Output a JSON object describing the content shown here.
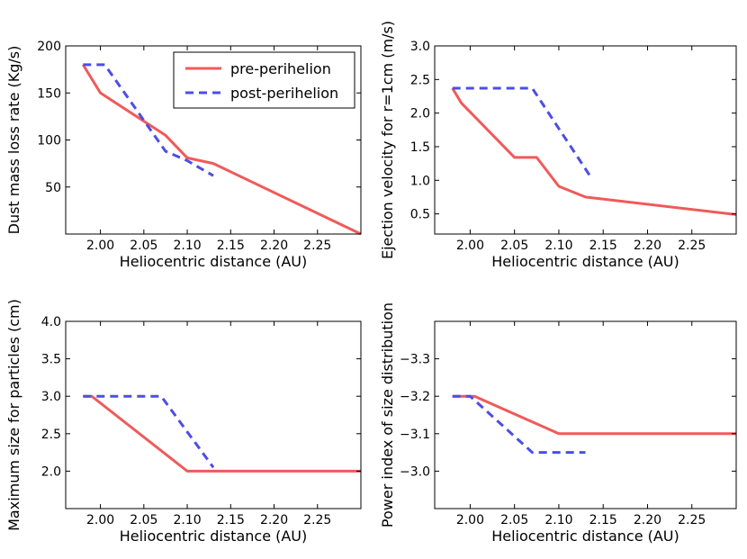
{
  "colors": {
    "pre": "#f05a5a",
    "post": "#4d4de6"
  },
  "chart_data": [
    {
      "type": "line",
      "xlabel": "Heliocentric distance (AU)",
      "ylabel": "Dust mass loss rate (Kg/s)",
      "xlim": [
        1.96,
        2.3
      ],
      "ylim": [
        0,
        200
      ],
      "y_inverted": false,
      "xticks": [
        "2.00",
        "2.05",
        "2.10",
        "2.15",
        "2.20",
        "2.25"
      ],
      "yticks": [
        "50",
        "100",
        "150",
        "200"
      ],
      "legend": {
        "position": "top-right",
        "entries": [
          "pre-perihelion",
          "post-perihelion"
        ]
      },
      "series": [
        {
          "name": "pre-perihelion",
          "style": "solid",
          "points": [
            [
              1.98,
              180
            ],
            [
              2.0,
              150
            ],
            [
              2.075,
              105
            ],
            [
              2.1,
              81
            ],
            [
              2.13,
              75
            ],
            [
              2.3,
              0
            ]
          ]
        },
        {
          "name": "post-perihelion",
          "style": "dashed",
          "points": [
            [
              1.98,
              180
            ],
            [
              2.005,
              180
            ],
            [
              2.075,
              88
            ],
            [
              2.1,
              78
            ],
            [
              2.13,
              62
            ]
          ]
        }
      ]
    },
    {
      "type": "line",
      "xlabel": "Heliocentric distance (AU)",
      "ylabel": "Ejection velocity for r=1cm (m/s)",
      "xlim": [
        1.96,
        2.3
      ],
      "ylim": [
        0.2,
        3.0
      ],
      "y_inverted": false,
      "xticks": [
        "2.00",
        "2.05",
        "2.10",
        "2.15",
        "2.20",
        "2.25"
      ],
      "yticks": [
        "0.5",
        "1.0",
        "1.5",
        "2.0",
        "2.5",
        "3.0"
      ],
      "series": [
        {
          "name": "pre-perihelion",
          "style": "solid",
          "points": [
            [
              1.98,
              2.37
            ],
            [
              1.99,
              2.15
            ],
            [
              2.05,
              1.34
            ],
            [
              2.075,
              1.34
            ],
            [
              2.1,
              0.91
            ],
            [
              2.13,
              0.75
            ],
            [
              2.3,
              0.49
            ]
          ]
        },
        {
          "name": "post-perihelion",
          "style": "dashed",
          "points": [
            [
              1.98,
              2.37
            ],
            [
              2.07,
              2.37
            ],
            [
              2.135,
              1.07
            ]
          ]
        }
      ]
    },
    {
      "type": "line",
      "xlabel": "Heliocentric distance (AU)",
      "ylabel": "Maximum size for particles (cm)",
      "xlim": [
        1.96,
        2.3
      ],
      "ylim": [
        1.5,
        4.0
      ],
      "y_inverted": false,
      "xticks": [
        "2.00",
        "2.05",
        "2.10",
        "2.15",
        "2.20",
        "2.25"
      ],
      "yticks": [
        "2.0",
        "2.5",
        "3.0",
        "3.5",
        "4.0"
      ],
      "series": [
        {
          "name": "pre-perihelion",
          "style": "solid",
          "points": [
            [
              1.98,
              3.0
            ],
            [
              1.99,
              3.0
            ],
            [
              2.1,
              2.0
            ],
            [
              2.3,
              2.0
            ]
          ]
        },
        {
          "name": "post-perihelion",
          "style": "dashed",
          "points": [
            [
              1.98,
              3.0
            ],
            [
              2.07,
              3.0
            ],
            [
              2.13,
              2.05
            ]
          ]
        }
      ]
    },
    {
      "type": "line",
      "xlabel": "Heliocentric distance (AU)",
      "ylabel": "Power index of size distribution",
      "xlim": [
        1.96,
        2.3
      ],
      "ylim": [
        -3.4,
        -2.9
      ],
      "y_inverted": true,
      "xticks": [
        "2.00",
        "2.05",
        "2.10",
        "2.15",
        "2.20",
        "2.25"
      ],
      "yticks": [
        "−3.3",
        "−3.2",
        "−3.1",
        "−3.0"
      ],
      "yticks_values": [
        -3.3,
        -3.2,
        -3.1,
        -3.0
      ],
      "series": [
        {
          "name": "pre-perihelion",
          "style": "solid",
          "points": [
            [
              1.98,
              -3.2
            ],
            [
              2.005,
              -3.2
            ],
            [
              2.1,
              -3.1
            ],
            [
              2.3,
              -3.1
            ]
          ]
        },
        {
          "name": "post-perihelion",
          "style": "dashed",
          "points": [
            [
              1.98,
              -3.2
            ],
            [
              2.0,
              -3.2
            ],
            [
              2.07,
              -3.05
            ],
            [
              2.13,
              -3.05
            ]
          ]
        }
      ]
    }
  ]
}
